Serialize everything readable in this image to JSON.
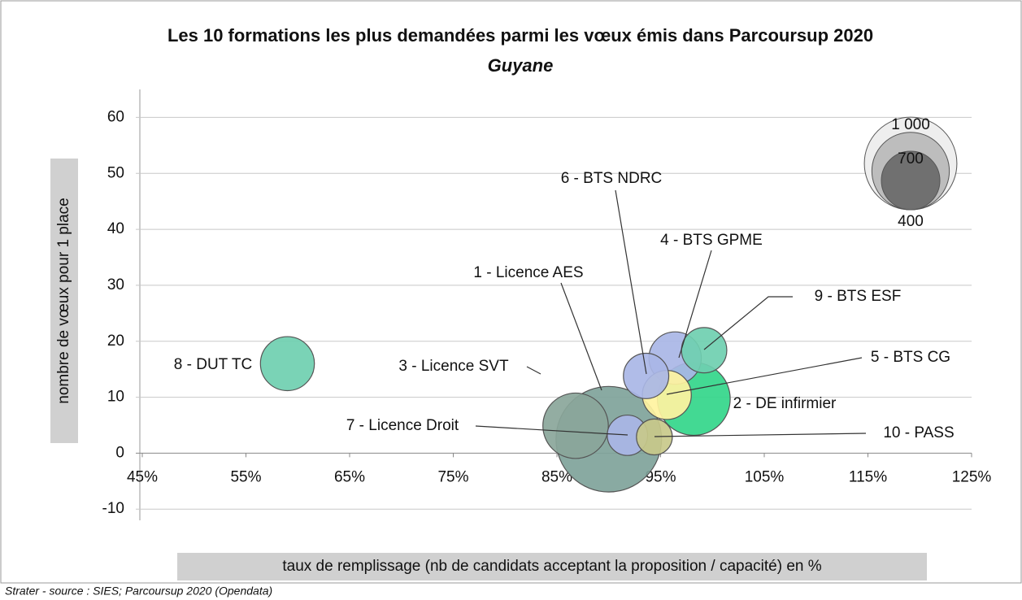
{
  "chart_data": {
    "type": "bubble",
    "title": "Les 10 formations les plus demandées parmi les vœux émis dans Parcoursup 2020",
    "subtitle": "Guyane",
    "x_label": "taux de remplissage (nb de candidats acceptant la proposition / capacité) en %",
    "y_label": "nombre de vœux pour 1 place",
    "source": "Strater - source : SIES; Parcoursup 2020 (Opendata)",
    "xlim": [
      45,
      125
    ],
    "ylim": [
      -12,
      65
    ],
    "xticks": [
      {
        "value": 45,
        "label": "45%"
      },
      {
        "value": 55,
        "label": "55%"
      },
      {
        "value": 65,
        "label": "65%"
      },
      {
        "value": 75,
        "label": "75%"
      },
      {
        "value": 85,
        "label": "85%"
      },
      {
        "value": 95,
        "label": "95%"
      },
      {
        "value": 105,
        "label": "105%"
      },
      {
        "value": 115,
        "label": "115%"
      },
      {
        "value": 125,
        "label": "125%"
      }
    ],
    "yticks": [
      -10,
      0,
      10,
      20,
      30,
      40,
      50,
      60
    ],
    "grid": true,
    "series": [
      {
        "name": "1 - Licence AES",
        "color": "#7fa39a",
        "x": [
          90
        ],
        "values": [
          2.5
        ],
        "sizes": [
          1300
        ]
      },
      {
        "name": "3 - Licence SVT",
        "color": "#8aa69a",
        "x": [
          86.8
        ],
        "values": [
          4.9
        ],
        "sizes": [
          500
        ]
      },
      {
        "name": "2 - DE infirmier",
        "color": "#33d68a",
        "x": [
          98.2
        ],
        "values": [
          9.7
        ],
        "sizes": [
          620
        ]
      },
      {
        "name": "4 - BTS GPME",
        "color": "#a9b6e6",
        "x": [
          96.4
        ],
        "values": [
          17
        ],
        "sizes": [
          320
        ]
      },
      {
        "name": "9 - BTS ESF",
        "color": "#6fcfb0",
        "x": [
          99.2
        ],
        "values": [
          18.4
        ],
        "sizes": [
          240
        ]
      },
      {
        "name": "5 - BTS CG",
        "color": "#fff3a0",
        "x": [
          95.6
        ],
        "values": [
          10.4
        ],
        "sizes": [
          280
        ]
      },
      {
        "name": "6 - BTS NDRC",
        "color": "#a9b6e6",
        "x": [
          93.6
        ],
        "values": [
          13.8
        ],
        "sizes": [
          240
        ]
      },
      {
        "name": "7 - Licence Droit",
        "color": "#a9b6e6",
        "x": [
          91.8
        ],
        "values": [
          3.2
        ],
        "sizes": [
          190
        ]
      },
      {
        "name": "10 - PASS",
        "color": "#c8c98a",
        "x": [
          94.4
        ],
        "values": [
          2.9
        ],
        "sizes": [
          150
        ]
      },
      {
        "name": "8 - DUT TC",
        "color": "#6fcfb0",
        "x": [
          59
        ],
        "values": [
          16
        ],
        "sizes": [
          340
        ]
      }
    ],
    "size_legend": [
      {
        "value": 1000,
        "label": "1 000"
      },
      700,
      400
    ]
  }
}
